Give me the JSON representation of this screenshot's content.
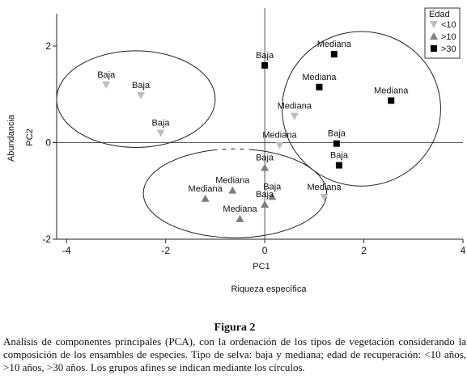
{
  "chart_data": {
    "type": "scatter",
    "xlabel": "PC1",
    "xlabel_secondary": "Riqueza específica",
    "ylabel": "PC2",
    "ylabel_secondary": "Abundancia",
    "xlim": [
      -4.2,
      4
    ],
    "ylim": [
      -2.0,
      2.2
    ],
    "x_ticks": [
      -4,
      -2,
      0,
      2,
      4
    ],
    "x_tick_labels": [
      "-4",
      "-2",
      "0",
      "2",
      "4"
    ],
    "y_ticks": [
      -2,
      0,
      2
    ],
    "y_tick_labels": [
      "-2",
      "0",
      "2"
    ],
    "grid": false,
    "reference_lines": [
      0,
      0
    ],
    "legend": {
      "title": "Edad",
      "placement": "top-right",
      "entries": [
        {
          "label": "<10",
          "marker": "triangle-down",
          "color": "#bdbdbd"
        },
        {
          "label": ">10",
          "marker": "triangle-up",
          "color": "#7f7f7f"
        },
        {
          "label": ">30",
          "marker": "square",
          "color": "#000000"
        }
      ]
    },
    "series": [
      {
        "name": "<10",
        "marker": "triangle-down",
        "color": "#bdbdbd",
        "points": [
          {
            "x": -3.2,
            "y": 1.2,
            "label": "Baja"
          },
          {
            "x": -2.5,
            "y": 0.98,
            "label": "Baja"
          },
          {
            "x": -2.1,
            "y": 0.2,
            "label": "Baja"
          },
          {
            "x": 0.6,
            "y": 0.55,
            "label": "Mediana"
          },
          {
            "x": 0.3,
            "y": -0.05,
            "label": "Mediana"
          },
          {
            "x": 1.2,
            "y": -1.13,
            "label": "Mediana"
          }
        ]
      },
      {
        "name": ">10",
        "marker": "triangle-up",
        "color": "#7f7f7f",
        "points": [
          {
            "x": 0.0,
            "y": -0.52,
            "label": "Baja"
          },
          {
            "x": -1.2,
            "y": -1.16,
            "label": "Mediana"
          },
          {
            "x": -0.65,
            "y": -0.99,
            "label": "Mediana"
          },
          {
            "x": 0.15,
            "y": -1.12,
            "label": "Baja"
          },
          {
            "x": 0.0,
            "y": -1.28,
            "label": "Baja"
          },
          {
            "x": -0.5,
            "y": -1.58,
            "label": "Mediana"
          }
        ]
      },
      {
        "name": ">30",
        "marker": "square",
        "color": "#000000",
        "points": [
          {
            "x": 0.0,
            "y": 1.6,
            "label": "Baja"
          },
          {
            "x": 1.4,
            "y": 1.83,
            "label": "Mediana"
          },
          {
            "x": 1.1,
            "y": 1.15,
            "label": "Mediana"
          },
          {
            "x": 2.55,
            "y": 0.87,
            "label": "Mediana"
          },
          {
            "x": 1.45,
            "y": -0.02,
            "label": "Baja"
          },
          {
            "x": 1.5,
            "y": -0.47,
            "label": "Baja"
          }
        ]
      }
    ],
    "groupings": [
      {
        "shape": "ellipse",
        "cx": -2.6,
        "cy": 0.9,
        "rx": 1.6,
        "ry": 1.0,
        "dashed_arc": false
      },
      {
        "shape": "ellipse",
        "cx": -0.6,
        "cy": -1.05,
        "rx": 1.85,
        "ry": 0.92,
        "dashed_arc": true
      },
      {
        "shape": "ellipse",
        "cx": 1.95,
        "cy": 0.7,
        "rx": 1.6,
        "ry": 1.6,
        "dashed_arc": false
      }
    ]
  },
  "caption": {
    "title": "Figura 2",
    "text": "Análisis de componentes principales (PCA), con la ordenación de los tipos de vegetación considerando la composición de los ensambles de especies. Tipo de selva: baja y mediana; edad de recuperación: <10 años, >10 años, >30 años. Los grupos afines se indican mediante los círculos."
  }
}
